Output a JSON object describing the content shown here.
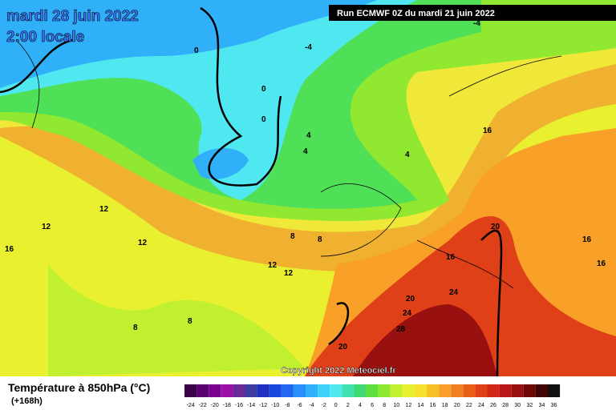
{
  "header": {
    "date": "mardi 28 juin 2022",
    "time": "2:00 locale",
    "run": "Run ECMWF 0Z du mardi 21 juin 2022",
    "copyright": "Copyright 2022 Meteociel.fr"
  },
  "map": {
    "contour_labels": [
      "0",
      "0",
      "0",
      "-4",
      "-4",
      "4",
      "4",
      "4",
      "8",
      "8",
      "12",
      "12",
      "12",
      "12",
      "12",
      "16",
      "16",
      "16",
      "16",
      "16",
      "20",
      "20",
      "20",
      "24",
      "24",
      "28",
      "8",
      "8"
    ]
  },
  "legend": {
    "title": "Température à 850hPa (°C)",
    "subtitle": "(+168h)",
    "ticks": [
      "-24",
      "-22",
      "-20",
      "-18",
      "-16",
      "-14",
      "-12",
      "-10",
      "-8",
      "-6",
      "-4",
      "-2",
      "0",
      "2",
      "4",
      "6",
      "8",
      "10",
      "12",
      "14",
      "16",
      "18",
      "20",
      "22",
      "24",
      "26",
      "28",
      "30",
      "32",
      "34",
      "36"
    ],
    "colors": [
      "#3a0048",
      "#5a0070",
      "#7a0090",
      "#9a10a8",
      "#6a2898",
      "#3c3ca0",
      "#2030c0",
      "#1848e0",
      "#2068f0",
      "#2890f8",
      "#30b0f8",
      "#40d0f8",
      "#50e8f0",
      "#40e0b0",
      "#40d870",
      "#60e040",
      "#90e830",
      "#c0f030",
      "#e8f030",
      "#f8e030",
      "#f8c028",
      "#f8a028",
      "#f08020",
      "#e86018",
      "#e04018",
      "#d02818",
      "#b81818",
      "#981010",
      "#700808",
      "#400404",
      "#101010"
    ]
  }
}
